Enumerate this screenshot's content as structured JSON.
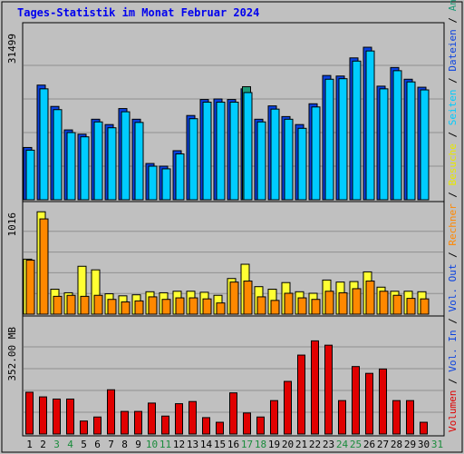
{
  "title": "Tages-Statistik im Monat Februar 2024",
  "colors": {
    "background": "#c0c0c0",
    "border": "#000000",
    "title": "#0000ee",
    "grid": "#909090",
    "anfragen": "#0a42e0",
    "dateien": "#00ccff",
    "seiten": "#1e9a78",
    "besuche": "#ffff33",
    "rechner": "#ff8800",
    "volumen": "#e00000",
    "day_normal": "#000000",
    "day_weekend": "#1a8c3c"
  },
  "right_legend": [
    {
      "text": "Volumen",
      "color": "#e00000"
    },
    {
      "text": " / ",
      "color": "#000000"
    },
    {
      "text": "Vol. In",
      "color": "#0a42e0"
    },
    {
      "text": " / ",
      "color": "#000000"
    },
    {
      "text": "Vol. Out",
      "color": "#0a42e0"
    },
    {
      "text": " / ",
      "color": "#000000"
    },
    {
      "text": "Rechner",
      "color": "#ff8800"
    },
    {
      "text": " / ",
      "color": "#000000"
    },
    {
      "text": "Besuche",
      "color": "#e8e800"
    },
    {
      "text": " / ",
      "color": "#000000"
    },
    {
      "text": "Seiten",
      "color": "#00ccff"
    },
    {
      "text": " / ",
      "color": "#000000"
    },
    {
      "text": "Dateien",
      "color": "#0a42e0"
    },
    {
      "text": " / ",
      "color": "#000000"
    },
    {
      "text": "Anfragen",
      "color": "#1e9a78"
    }
  ],
  "chart_data": [
    {
      "type": "bar",
      "name": "hits",
      "ylabel": "31499",
      "ylim": [
        0,
        31499
      ],
      "grid": true,
      "categories": [
        "1",
        "2",
        "3",
        "4",
        "5",
        "6",
        "7",
        "8",
        "9",
        "10",
        "11",
        "12",
        "13",
        "14",
        "15",
        "16",
        "17",
        "18",
        "19",
        "20",
        "21",
        "22",
        "23",
        "24",
        "25",
        "26",
        "27",
        "28",
        "29",
        "30",
        "31"
      ],
      "series": [
        {
          "name": "Anfragen",
          "values": [
            9800,
            21500,
            17500,
            13100,
            12300,
            15100,
            14100,
            17100,
            15100,
            6800,
            6300,
            9200,
            15800,
            18800,
            18900,
            18800,
            20800,
            15100,
            17600,
            15600,
            14100,
            18000,
            23300,
            23200,
            26600,
            28600,
            21300,
            24800,
            22600,
            21100,
            null
          ]
        },
        {
          "name": "Dateien",
          "values": [
            9300,
            20800,
            16900,
            12600,
            11800,
            14600,
            13500,
            16500,
            14500,
            6300,
            5800,
            8600,
            15200,
            18300,
            18300,
            18300,
            20100,
            14600,
            17000,
            15100,
            13400,
            17400,
            22600,
            22700,
            26000,
            27900,
            20800,
            24200,
            22100,
            20600,
            null
          ]
        },
        {
          "name": "Seiten",
          "values": [
            null,
            null,
            null,
            null,
            null,
            null,
            null,
            null,
            null,
            null,
            null,
            null,
            null,
            null,
            null,
            null,
            21200,
            null,
            null,
            null,
            null,
            null,
            null,
            null,
            null,
            null,
            null,
            null,
            null,
            null,
            null
          ]
        }
      ]
    },
    {
      "type": "bar",
      "name": "visits",
      "ylabel": "1016",
      "ylim": [
        0,
        1016
      ],
      "grid": true,
      "categories": [
        "1",
        "2",
        "3",
        "4",
        "5",
        "6",
        "7",
        "8",
        "9",
        "10",
        "11",
        "12",
        "13",
        "14",
        "15",
        "16",
        "17",
        "18",
        "19",
        "20",
        "21",
        "22",
        "23",
        "24",
        "25",
        "26",
        "27",
        "28",
        "29",
        "30",
        "31"
      ],
      "series": [
        {
          "name": "Besuche",
          "values": [
            540,
            1005,
            245,
            210,
            470,
            435,
            200,
            180,
            190,
            220,
            210,
            225,
            225,
            215,
            185,
            350,
            490,
            270,
            245,
            310,
            220,
            205,
            335,
            315,
            320,
            415,
            265,
            225,
            225,
            220,
            null
          ]
        },
        {
          "name": "Rechner",
          "values": [
            530,
            935,
            175,
            185,
            175,
            185,
            145,
            120,
            130,
            170,
            145,
            160,
            160,
            150,
            110,
            315,
            325,
            170,
            135,
            205,
            160,
            145,
            225,
            210,
            250,
            325,
            225,
            185,
            155,
            150,
            null
          ]
        }
      ]
    },
    {
      "type": "bar",
      "name": "volume",
      "ylabel": "352.00 MB",
      "ylim": [
        0,
        352
      ],
      "grid": true,
      "categories": [
        "1",
        "2",
        "3",
        "4",
        "5",
        "6",
        "7",
        "8",
        "9",
        "10",
        "11",
        "12",
        "13",
        "14",
        "15",
        "16",
        "17",
        "18",
        "19",
        "20",
        "21",
        "22",
        "23",
        "24",
        "25",
        "26",
        "27",
        "28",
        "29",
        "30",
        "31"
      ],
      "series": [
        {
          "name": "Volumen",
          "values": [
            135,
            120,
            113,
            113,
            42,
            55,
            143,
            73,
            73,
            100,
            58,
            98,
            105,
            53,
            38,
            133,
            68,
            55,
            108,
            170,
            255,
            301,
            287,
            108,
            218,
            196,
            210,
            108,
            108,
            38,
            null
          ]
        }
      ]
    }
  ],
  "weekend_days": [
    3,
    4,
    10,
    11,
    17,
    18,
    24,
    25,
    31
  ]
}
